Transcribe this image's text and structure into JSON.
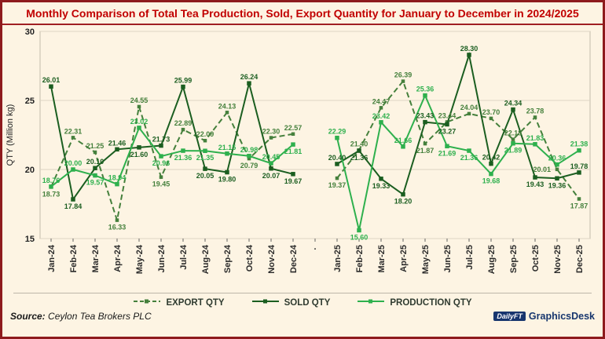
{
  "title": "Monthly Comparison of Total Tea Production, Sold, Export Quantity for January to December in 2024/2025",
  "y_axis": {
    "label": "QTY (Million kg)",
    "ticks": [
      30,
      25,
      20,
      15
    ],
    "min": 15,
    "max": 30
  },
  "chart_data": {
    "type": "line",
    "ylim": [
      15,
      30
    ],
    "grid": true,
    "legend_position": "bottom",
    "gap_label": ".",
    "categories_2024": [
      "Jan-24",
      "Feb-24",
      "Mar-24",
      "Apr-24",
      "May-24",
      "Jun-24",
      "Jul-24",
      "Aug-24",
      "Sep-24",
      "Oct-24",
      "Nov-24",
      "Dec-24"
    ],
    "categories_2025": [
      "Jan-25",
      "Feb-25",
      "Mar-25",
      "Apr-25",
      "May-25",
      "Jun-25",
      "Jul-25",
      "Aug-25",
      "Sep-25",
      "Oct-25",
      "Nov-25",
      "Dec-25"
    ],
    "series": [
      {
        "name": "EXPORT QTY",
        "style": "dashed",
        "color": "#45803c",
        "values_2024": [
          18.73,
          22.31,
          21.25,
          16.33,
          24.55,
          19.45,
          22.89,
          22.09,
          24.13,
          20.79,
          22.3,
          22.57
        ],
        "values_2025": [
          19.37,
          21.4,
          24.47,
          26.39,
          21.87,
          23.44,
          24.04,
          23.7,
          22.18,
          23.78,
          20.01,
          17.87
        ]
      },
      {
        "name": "SOLD QTY",
        "style": "solid",
        "color": "#1b5e20",
        "values_2024": [
          26.01,
          17.84,
          20.1,
          21.46,
          21.6,
          21.73,
          25.99,
          20.05,
          19.8,
          26.24,
          20.07,
          19.67
        ],
        "values_2025": [
          20.4,
          21.36,
          19.33,
          18.2,
          23.43,
          23.27,
          28.3,
          20.42,
          24.34,
          19.43,
          19.36,
          19.78
        ]
      },
      {
        "name": "PRODUCTION QTY",
        "style": "solid",
        "color": "#2eb04d",
        "values_2024": [
          18.76,
          20.0,
          19.57,
          18.94,
          23.02,
          20.96,
          21.36,
          21.35,
          21.15,
          20.98,
          20.45,
          21.81
        ],
        "values_2025": [
          22.29,
          15.6,
          23.42,
          21.66,
          25.36,
          21.69,
          21.36,
          19.68,
          21.89,
          21.83,
          20.36,
          21.38
        ]
      }
    ]
  },
  "footer": {
    "source_label": "Source:",
    "source_value": "Ceylon Tea Brokers PLC",
    "logo_box": "DailyFT",
    "logo_desk": "GraphicsDesk"
  },
  "colors": {
    "title": "#c10000",
    "page_border": "#8e1b1d",
    "background": "#fdf4e3",
    "export": "#45803c",
    "sold": "#1b5e20",
    "production": "#2eb04d"
  }
}
